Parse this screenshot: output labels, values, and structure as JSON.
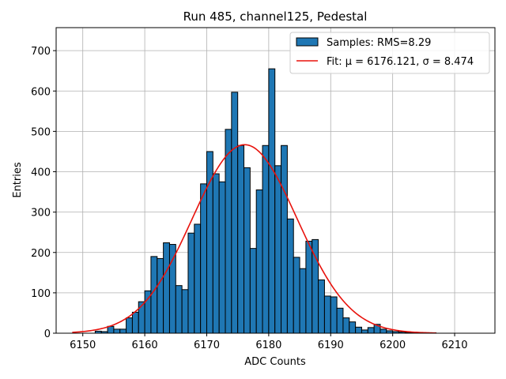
{
  "chart_data": {
    "type": "bar",
    "title": "Run 485, channel125, Pedestal",
    "xlabel": "ADC Counts",
    "ylabel": "Entries",
    "xlim": [
      6145.7,
      6216.5
    ],
    "ylim": [
      0,
      757
    ],
    "xticks": [
      6150,
      6160,
      6170,
      6180,
      6190,
      6200,
      6210
    ],
    "yticks": [
      0,
      100,
      200,
      300,
      400,
      500,
      600,
      700
    ],
    "grid": true,
    "legend_position": "top-right",
    "histogram": {
      "name": "Samples: RMS=8.29",
      "color": "#1f77b4",
      "bin_width": 1,
      "bin_starts": [
        6152,
        6153,
        6154,
        6155,
        6156,
        6157,
        6158,
        6159,
        6160,
        6161,
        6162,
        6163,
        6164,
        6165,
        6166,
        6167,
        6168,
        6169,
        6170,
        6171,
        6172,
        6173,
        6174,
        6175,
        6176,
        6177,
        6178,
        6179,
        6180,
        6181,
        6182,
        6183,
        6184,
        6185,
        6186,
        6187,
        6188,
        6189,
        6190,
        6191,
        6192,
        6193,
        6194,
        6195,
        6196,
        6197,
        6198,
        6199,
        6200,
        6201,
        6202,
        6203,
        6204,
        6205,
        6206
      ],
      "values": [
        5,
        4,
        17,
        10,
        10,
        38,
        52,
        78,
        105,
        190,
        185,
        224,
        220,
        118,
        108,
        248,
        270,
        370,
        450,
        395,
        375,
        505,
        597,
        465,
        410,
        210,
        355,
        465,
        655,
        415,
        465,
        283,
        188,
        160,
        228,
        232,
        132,
        92,
        90,
        62,
        38,
        28,
        15,
        8,
        14,
        22,
        10,
        6,
        4,
        3,
        2,
        2,
        1,
        1,
        1
      ]
    },
    "fit": {
      "name": "Fit: μ = 6176.121, σ = 8.474",
      "color": "#e8120c",
      "mu": 6176.121,
      "sigma": 8.474,
      "amplitude": 467,
      "x_range": [
        6148.3,
        6207
      ]
    }
  }
}
